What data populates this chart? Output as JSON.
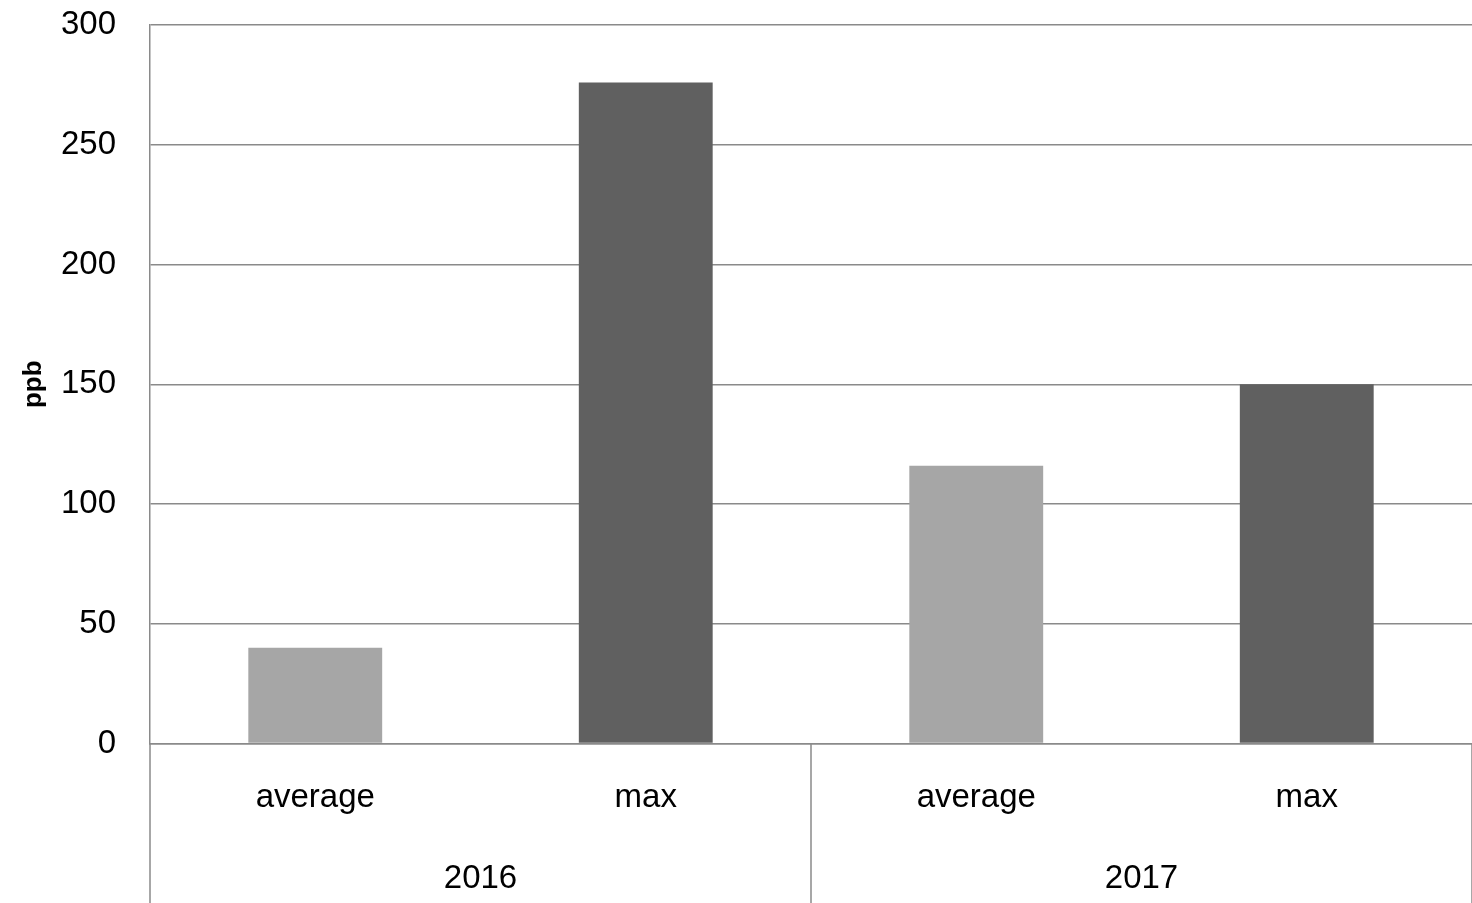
{
  "chart_data": {
    "type": "bar",
    "categories": [
      "average",
      "max",
      "average",
      "max"
    ],
    "values": [
      40,
      276,
      116,
      150
    ],
    "colors": [
      "#a6a6a6",
      "#606060",
      "#a6a6a6",
      "#606060"
    ],
    "ylabel": "ppb",
    "ylim": [
      0,
      300
    ],
    "yticks": [
      0,
      50,
      100,
      150,
      200,
      250,
      300
    ],
    "grid": "y",
    "annotations": [
      "2016",
      "2017"
    ]
  }
}
